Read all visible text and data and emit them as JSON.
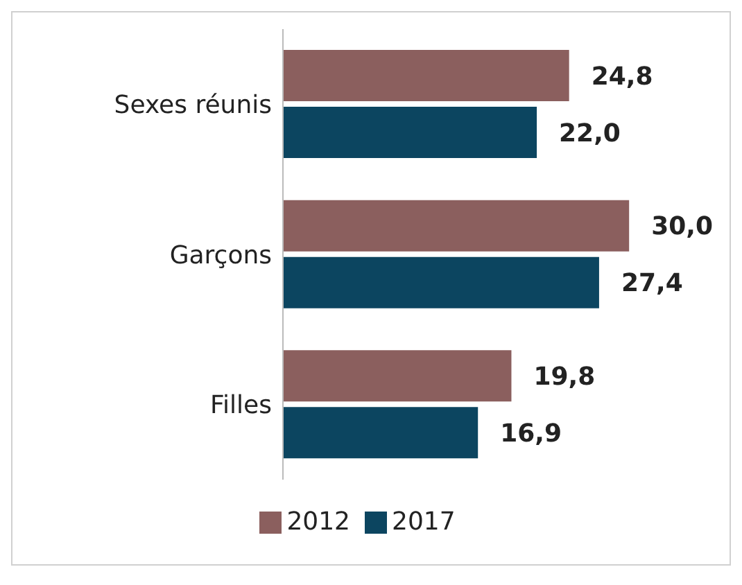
{
  "chart_data": {
    "type": "bar",
    "orientation": "horizontal",
    "categories": [
      "Sexes réunis",
      "Garçons",
      "Filles"
    ],
    "series": [
      {
        "name": "2012",
        "color": "#8b5f5e",
        "values": [
          24.8,
          30.0,
          19.8
        ],
        "value_labels": [
          "24,8",
          "30,0",
          "19,8"
        ]
      },
      {
        "name": "2017",
        "color": "#0c4560",
        "values": [
          22.0,
          27.4,
          16.9
        ],
        "value_labels": [
          "22,0",
          "27,4",
          "16,9"
        ]
      }
    ],
    "legend": "bottom"
  }
}
